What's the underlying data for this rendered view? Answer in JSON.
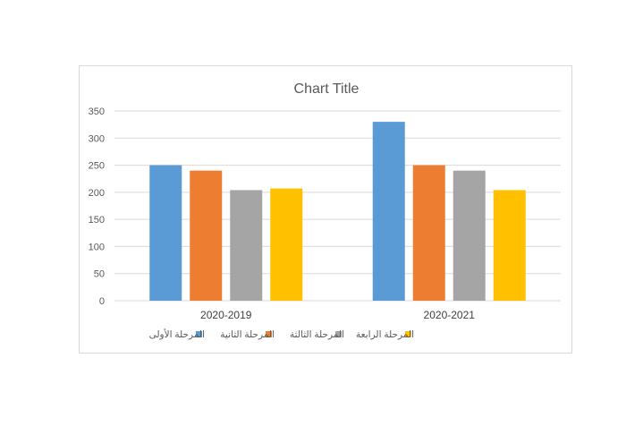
{
  "chart_data": {
    "type": "bar",
    "title": "Chart Title",
    "categories": [
      "2020-2019",
      "2020-2021"
    ],
    "series": [
      {
        "name": "المرحلة الأولى",
        "values": [
          250,
          330
        ],
        "color": "#5b9bd5"
      },
      {
        "name": "المرحلة الثانية",
        "values": [
          240,
          250
        ],
        "color": "#ed7d31"
      },
      {
        "name": "المرحلة الثالثة",
        "values": [
          204,
          240
        ],
        "color": "#a5a5a5"
      },
      {
        "name": "المرحلة الرابعة",
        "values": [
          207,
          204
        ],
        "color": "#ffc000"
      }
    ],
    "ylim": [
      0,
      350
    ],
    "yticks": [
      0,
      50,
      100,
      150,
      200,
      250,
      300,
      350
    ],
    "grid": true,
    "legend": "bottom"
  }
}
